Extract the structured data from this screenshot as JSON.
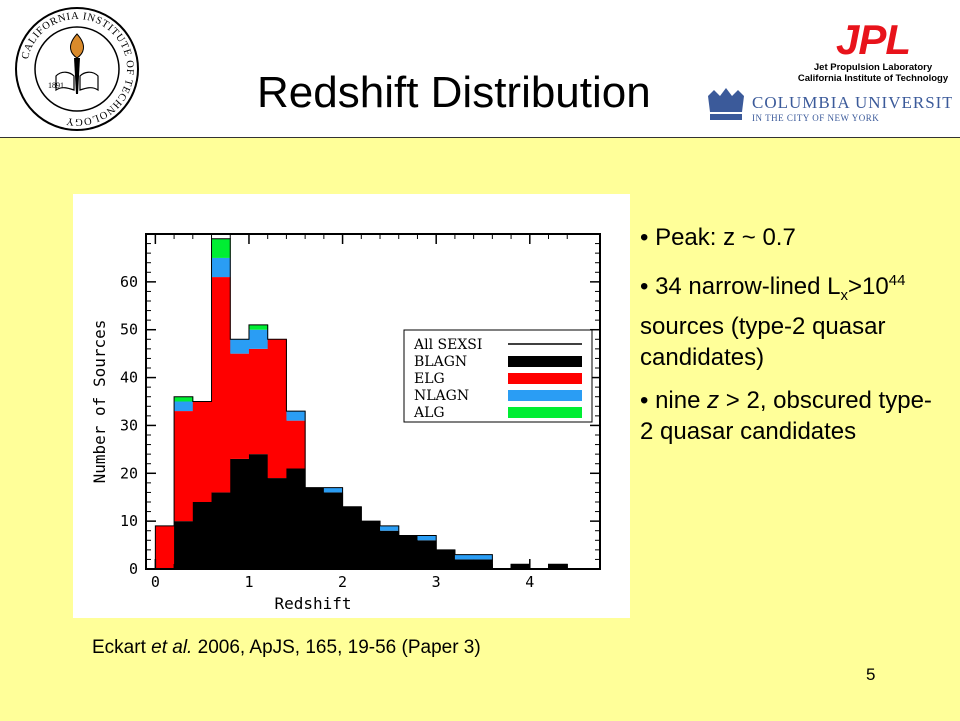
{
  "slide": {
    "title": "Redshift Distribution",
    "page_number": "5",
    "citation": {
      "author": "Eckart",
      "etal": "et al.",
      "rest": " 2006, ApJS, 165, 19-56  (Paper 3)"
    },
    "bullets": {
      "b1": "• Peak: z ~ 0.7",
      "b2_pre": "• 34 narrow-lined L",
      "b2_sub": "x",
      "b2_mid": ">10",
      "b2_sup": "44",
      "b2_post": " sources (type-2 quasar candidates)",
      "b3_pre": "• nine ",
      "b3_z": "z",
      "b3_post": " > 2, obscured type-2 quasar candidates"
    }
  },
  "logos": {
    "caltech": {
      "ring_text": "CALIFORNIA INSTITUTE OF TECHNOLOGY",
      "year": "1891"
    },
    "jpl": {
      "mark": "JPL",
      "line1": "Jet Propulsion Laboratory",
      "line2": "California Institute of Technology"
    },
    "columbia": {
      "name": "COLUMBIA UNIVERSITY",
      "sub": "IN THE CITY OF NEW YORK"
    }
  },
  "colors": {
    "slide_bg": "#ffff99",
    "blagn": "#000000",
    "elg": "#ff0000",
    "nlagn": "#2a9df4",
    "alg": "#00ee33",
    "jpl_red": "#e8131b",
    "columbia_blue": "#3b5a9a"
  },
  "chart_data": {
    "type": "bar",
    "stacked": true,
    "xlabel": "Redshift",
    "ylabel": "Number of Sources",
    "xlim": [
      -0.1,
      4.75
    ],
    "ylim": [
      0,
      70
    ],
    "bin_width": 0.2,
    "x_ticks": [
      0,
      1,
      2,
      3,
      4
    ],
    "y_ticks": [
      0,
      10,
      20,
      30,
      40,
      50,
      60
    ],
    "legend": {
      "placement": "right",
      "entries": [
        "All SEXSI",
        "BLAGN",
        "ELG",
        "NLAGN",
        "ALG"
      ]
    },
    "bin_starts": [
      0.0,
      0.2,
      0.4,
      0.6,
      0.8,
      1.0,
      1.2,
      1.4,
      1.6,
      1.8,
      2.0,
      2.2,
      2.4,
      2.6,
      2.8,
      3.0,
      3.2,
      3.4,
      3.6,
      3.8,
      4.0,
      4.2
    ],
    "series": [
      {
        "name": "BLAGN",
        "values": [
          0,
          10,
          14,
          16,
          23,
          24,
          19,
          21,
          17,
          16,
          13,
          10,
          8,
          7,
          6,
          4,
          2,
          2,
          0,
          1,
          0,
          1
        ]
      },
      {
        "name": "ELG",
        "values": [
          9,
          23,
          21,
          45,
          22,
          22,
          29,
          10,
          0,
          0,
          0,
          0,
          0,
          0,
          0,
          0,
          0,
          0,
          0,
          0,
          0,
          0
        ]
      },
      {
        "name": "NLAGN",
        "values": [
          0,
          2,
          0,
          4,
          3,
          4,
          0,
          2,
          0,
          1,
          0,
          0,
          1,
          0,
          1,
          0,
          1,
          1,
          0,
          0,
          0,
          0
        ]
      },
      {
        "name": "ALG",
        "values": [
          0,
          1,
          0,
          4,
          0,
          1,
          0,
          0,
          0,
          0,
          0,
          0,
          0,
          0,
          0,
          0,
          0,
          0,
          0,
          0,
          0,
          0
        ]
      }
    ],
    "all_sexsi_totals": [
      9,
      36,
      35,
      69,
      48,
      51,
      48,
      33,
      17,
      17,
      13,
      10,
      9,
      7,
      7,
      4,
      3,
      3,
      0,
      1,
      0,
      1
    ]
  }
}
